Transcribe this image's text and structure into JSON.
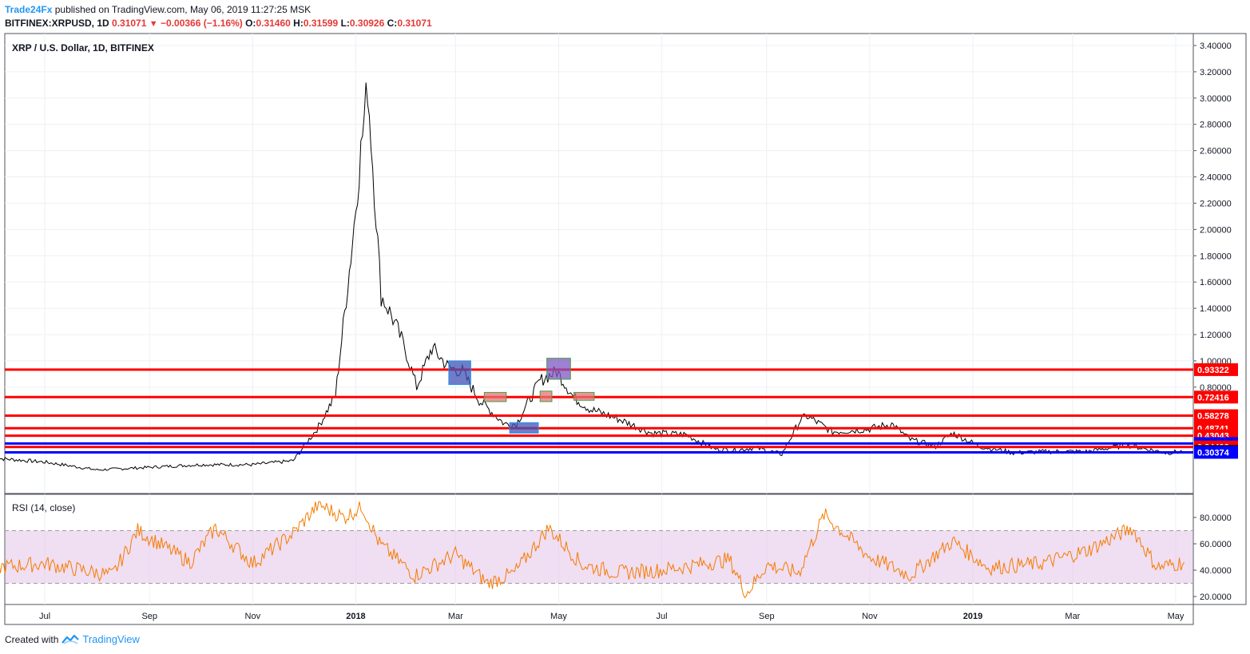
{
  "header": {
    "author": "Trade24Fx",
    "published_text": "published on TradingView.com, May 06, 2019 11:27:25 MSK",
    "symbol": "BITFINEX:XRPUSD, 1D",
    "last": "0.31071",
    "change": "−0.00366 (−1.16%)",
    "o_label": "O:",
    "o_val": "0.31460",
    "h_label": "H:",
    "h_val": "0.31599",
    "l_label": "L:",
    "l_val": "0.30926",
    "c_label": "C:",
    "c_val": "0.31071"
  },
  "footer": {
    "created_with": "Created with",
    "brand": "TradingView"
  },
  "colors": {
    "price_line": "#000000",
    "resistance": "#ff0000",
    "support": "#0000ff",
    "rsi_line": "#f57c00",
    "rsi_band": "#e1bee7",
    "box_blue": "#3f51b5",
    "box_green": "#43a047",
    "box_red": "#e57373",
    "box_purple": "#7e57c2"
  },
  "chart_data": [
    {
      "type": "line",
      "title": "XRP / U.S. Dollar, 1D, BITFINEX",
      "y_ticks": [
        "3.40000",
        "3.20000",
        "3.00000",
        "2.80000",
        "2.60000",
        "2.40000",
        "2.20000",
        "2.00000",
        "1.80000",
        "1.60000",
        "1.40000",
        "1.20000",
        "1.00000",
        "0.80000"
      ],
      "y_tick_values": [
        3.4,
        3.2,
        3.0,
        2.8,
        2.6,
        2.4,
        2.2,
        2.0,
        1.8,
        1.6,
        1.4,
        1.2,
        1.0,
        0.8
      ],
      "x_ticks": [
        "Jul",
        "Sep",
        "Nov",
        "2018",
        "Mar",
        "May",
        "Jul",
        "Sep",
        "Nov",
        "2019",
        "Mar",
        "May"
      ],
      "x_tick_dates": [
        "2017-07-01",
        "2017-09-01",
        "2017-11-01",
        "2018-01-01",
        "2018-03-01",
        "2018-05-01",
        "2018-07-01",
        "2018-09-01",
        "2018-11-01",
        "2019-01-01",
        "2019-03-01",
        "2019-05-01"
      ],
      "x": [
        "2017-06-01",
        "2017-07-01",
        "2017-08-01",
        "2017-09-01",
        "2017-10-01",
        "2017-11-01",
        "2017-11-25",
        "2017-12-10",
        "2017-12-20",
        "2017-12-30",
        "2018-01-04",
        "2018-01-08",
        "2018-01-16",
        "2018-01-22",
        "2018-01-30",
        "2018-02-06",
        "2018-02-15",
        "2018-02-25",
        "2018-03-05",
        "2018-03-15",
        "2018-03-30",
        "2018-04-06",
        "2018-04-20",
        "2018-04-30",
        "2018-05-10",
        "2018-05-20",
        "2018-06-05",
        "2018-06-25",
        "2018-07-15",
        "2018-08-01",
        "2018-08-14",
        "2018-08-25",
        "2018-09-10",
        "2018-09-21",
        "2018-09-25",
        "2018-10-10",
        "2018-10-31",
        "2018-11-14",
        "2018-11-25",
        "2018-12-10",
        "2018-12-20",
        "2019-01-05",
        "2019-01-25",
        "2019-02-15",
        "2019-03-10",
        "2019-04-02",
        "2019-04-25",
        "2019-05-06"
      ],
      "close": [
        0.26,
        0.23,
        0.17,
        0.19,
        0.21,
        0.21,
        0.24,
        0.5,
        0.74,
        1.9,
        2.6,
        3.1,
        1.5,
        1.35,
        1.1,
        0.8,
        1.1,
        0.95,
        0.92,
        0.7,
        0.52,
        0.52,
        0.85,
        0.92,
        0.72,
        0.63,
        0.56,
        0.45,
        0.44,
        0.33,
        0.32,
        0.34,
        0.29,
        0.55,
        0.58,
        0.46,
        0.48,
        0.52,
        0.4,
        0.35,
        0.45,
        0.35,
        0.3,
        0.31,
        0.31,
        0.36,
        0.3,
        0.31071
      ],
      "price_levels": [
        {
          "label": "0.93322",
          "value": 0.93322,
          "color": "#ff0000"
        },
        {
          "label": "0.72416",
          "value": 0.72416,
          "color": "#ff0000"
        },
        {
          "label": "0.58278",
          "value": 0.58278,
          "color": "#ff0000"
        },
        {
          "label": "0.48741",
          "value": 0.48741,
          "color": "#ff0000"
        },
        {
          "label": "0.43043",
          "value": 0.43043,
          "color": "#ff0000"
        },
        {
          "label": "0.37100",
          "value": 0.371,
          "color": "#0000ff"
        },
        {
          "label": "0.34493",
          "value": 0.34493,
          "color": "#ff0000"
        },
        {
          "label": "0.31071",
          "value": 0.31071,
          "color": "#000000"
        },
        {
          "label": "0.30374",
          "value": 0.30374,
          "color": "#0000ff"
        }
      ],
      "boxes": [
        {
          "x0": "2018-02-25",
          "x1": "2018-03-10",
          "y0": 0.82,
          "y1": 1.0,
          "fill": "#3f51b5",
          "border": "#2196f3"
        },
        {
          "x0": "2018-03-18",
          "x1": "2018-03-31",
          "y0": 0.69,
          "y1": 0.76,
          "fill": "#e57373",
          "border": "#43a047"
        },
        {
          "x0": "2018-04-02",
          "x1": "2018-04-19",
          "y0": 0.45,
          "y1": 0.53,
          "fill": "#3f51b5",
          "border": "#2196f3"
        },
        {
          "x0": "2018-04-20",
          "x1": "2018-04-27",
          "y0": 0.69,
          "y1": 0.77,
          "fill": "#e57373",
          "border": "#43a047"
        },
        {
          "x0": "2018-04-24",
          "x1": "2018-05-08",
          "y0": 0.86,
          "y1": 1.02,
          "fill": "#7e57c2",
          "border": "#43a047"
        },
        {
          "x0": "2018-05-10",
          "x1": "2018-05-22",
          "y0": 0.7,
          "y1": 0.76,
          "fill": "#e57373",
          "border": "#43a047"
        }
      ]
    },
    {
      "type": "line",
      "title": "RSI (14, close)",
      "y_ticks": [
        "80.0000",
        "60.0000",
        "40.0000",
        "20.0000"
      ],
      "y_tick_values": [
        80,
        60,
        40,
        20
      ],
      "band": [
        30,
        70
      ],
      "x": [
        "2017-06-01",
        "2017-07-01",
        "2017-08-10",
        "2017-08-25",
        "2017-09-25",
        "2017-10-10",
        "2017-11-01",
        "2017-11-25",
        "2017-12-10",
        "2017-12-25",
        "2018-01-05",
        "2018-01-15",
        "2018-02-05",
        "2018-03-01",
        "2018-03-20",
        "2018-04-05",
        "2018-04-25",
        "2018-05-15",
        "2018-06-05",
        "2018-07-01",
        "2018-08-10",
        "2018-08-20",
        "2018-09-01",
        "2018-09-20",
        "2018-10-05",
        "2018-11-01",
        "2018-11-25",
        "2018-12-20",
        "2019-01-10",
        "2019-02-10",
        "2019-03-10",
        "2019-04-05",
        "2019-04-20",
        "2019-05-06"
      ],
      "values": [
        42,
        45,
        36,
        70,
        46,
        72,
        45,
        68,
        90,
        80,
        88,
        60,
        36,
        52,
        30,
        38,
        72,
        44,
        38,
        40,
        48,
        22,
        44,
        38,
        82,
        50,
        36,
        62,
        42,
        45,
        55,
        72,
        42,
        46
      ]
    }
  ]
}
